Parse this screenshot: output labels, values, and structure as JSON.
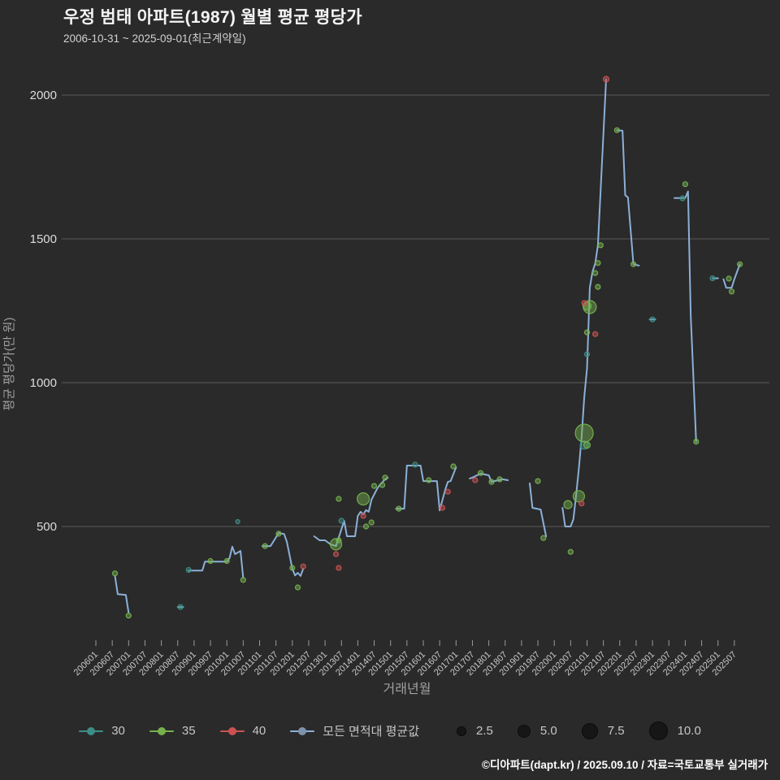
{
  "header": {
    "title": "우정 범태 아파트(1987) 월별 평균 평당가",
    "subtitle": "2006-10-31 ~ 2025-09-01(최근계약일)"
  },
  "colors": {
    "background": "#2a2a2a",
    "grid": "#5a5a5a",
    "tick": "#9a9a9a",
    "tick_label": "#c8c8c8",
    "axis_title": "#a0a0a0",
    "series_30": "#3d8e87",
    "series_35": "#76b14e",
    "series_40": "#cc5252",
    "average_line": "#8cb0d8"
  },
  "chart_data": {
    "type": "line",
    "title": "우정 범태 아파트(1987) 월별 평균 평당가",
    "xlabel": "거래년월",
    "ylabel": "평균 평당가(만 원)",
    "ylim": [
      90,
      2100
    ],
    "y_ticks": [
      500,
      1000,
      1500,
      2000
    ],
    "grid": true,
    "x_ticks": [
      "200601",
      "200607",
      "200701",
      "200707",
      "200801",
      "200807",
      "200901",
      "200907",
      "201001",
      "201007",
      "201101",
      "201107",
      "201201",
      "201207",
      "201301",
      "201307",
      "201401",
      "201407",
      "201501",
      "201507",
      "201601",
      "201607",
      "201701",
      "201707",
      "201801",
      "201807",
      "201901",
      "201907",
      "202001",
      "202007",
      "202101",
      "202107",
      "202201",
      "202207",
      "202301",
      "202307",
      "202401",
      "202407",
      "202501",
      "202507"
    ],
    "line_series": {
      "name": "모든 면적대 평균값",
      "segments": [
        [
          [
            "2006-08",
            328
          ],
          [
            "2006-09",
            265
          ],
          [
            "2006-12",
            262
          ],
          [
            "2007-01",
            200
          ]
        ],
        [
          [
            "2008-07",
            220
          ],
          [
            "2008-09",
            220
          ]
        ],
        [
          [
            "2008-11",
            347
          ],
          [
            "2009-04",
            347
          ],
          [
            "2009-05",
            378
          ],
          [
            "2010-01",
            378
          ],
          [
            "2010-02",
            391
          ],
          [
            "2010-03",
            430
          ],
          [
            "2010-04",
            404
          ],
          [
            "2010-06",
            415
          ],
          [
            "2010-07",
            322
          ]
        ],
        [
          [
            "2011-02",
            432
          ],
          [
            "2011-05",
            432
          ],
          [
            "2011-08",
            477
          ],
          [
            "2011-10",
            474
          ],
          [
            "2011-11",
            446
          ],
          [
            "2012-01",
            353
          ],
          [
            "2012-02",
            330
          ],
          [
            "2012-03",
            339
          ],
          [
            "2012-04",
            328
          ],
          [
            "2012-05",
            353
          ]
        ],
        [
          [
            "2012-09",
            466
          ],
          [
            "2012-11",
            452
          ],
          [
            "2013-01",
            452
          ],
          [
            "2013-03",
            438
          ],
          [
            "2013-05",
            432
          ],
          [
            "2013-08",
            520
          ],
          [
            "2013-09",
            466
          ],
          [
            "2013-12",
            466
          ],
          [
            "2014-01",
            537
          ],
          [
            "2014-02",
            551
          ],
          [
            "2014-03",
            542
          ],
          [
            "2014-04",
            557
          ],
          [
            "2014-05",
            551
          ],
          [
            "2014-06",
            593
          ],
          [
            "2014-08",
            630
          ],
          [
            "2014-09",
            644
          ],
          [
            "2014-11",
            664
          ],
          [
            "2014-12",
            670
          ]
        ],
        [
          [
            "2015-03",
            562
          ],
          [
            "2015-06",
            562
          ],
          [
            "2015-07",
            712
          ],
          [
            "2015-12",
            712
          ],
          [
            "2016-01",
            658
          ],
          [
            "2016-06",
            658
          ],
          [
            "2016-07",
            556
          ],
          [
            "2016-09",
            627
          ],
          [
            "2016-10",
            655
          ],
          [
            "2016-11",
            658
          ],
          [
            "2017-01",
            706
          ]
        ],
        [
          [
            "2017-06",
            667
          ],
          [
            "2017-07",
            670
          ],
          [
            "2017-10",
            684
          ],
          [
            "2018-01",
            678
          ],
          [
            "2018-02",
            655
          ],
          [
            "2018-03",
            658
          ],
          [
            "2018-06",
            664
          ],
          [
            "2018-08",
            661
          ]
        ],
        [
          [
            "2019-04",
            650
          ],
          [
            "2019-05",
            565
          ],
          [
            "2019-08",
            559
          ],
          [
            "2019-10",
            466
          ]
        ],
        [
          [
            "2020-04",
            565
          ],
          [
            "2020-05",
            500
          ],
          [
            "2020-07",
            500
          ],
          [
            "2020-08",
            525
          ],
          [
            "2020-09",
            610
          ],
          [
            "2020-10",
            700
          ],
          [
            "2020-11",
            810
          ],
          [
            "2020-12",
            950
          ],
          [
            "2021-01",
            1050
          ],
          [
            "2021-02",
            1330
          ],
          [
            "2021-03",
            1385
          ],
          [
            "2021-04",
            1415
          ],
          [
            "2021-05",
            1478
          ],
          [
            "2021-08",
            2055
          ]
        ],
        [
          [
            "2021-12",
            1878
          ],
          [
            "2022-02",
            1876
          ],
          [
            "2022-03",
            1652
          ],
          [
            "2022-04",
            1644
          ],
          [
            "2022-06",
            1412
          ],
          [
            "2022-08",
            1407
          ]
        ],
        [
          [
            "2022-12",
            1220
          ],
          [
            "2023-02",
            1220
          ]
        ],
        [
          [
            "2023-09",
            1642
          ],
          [
            "2024-01",
            1642
          ],
          [
            "2024-02",
            1665
          ],
          [
            "2024-03",
            1237
          ],
          [
            "2024-05",
            795
          ]
        ],
        [
          [
            "2024-11",
            1363
          ],
          [
            "2025-01",
            1363
          ]
        ],
        [
          [
            "2025-03",
            1360
          ],
          [
            "2025-04",
            1330
          ],
          [
            "2025-06",
            1330
          ],
          [
            "2025-07",
            1360
          ],
          [
            "2025-09",
            1412
          ]
        ]
      ]
    },
    "scatter_series": [
      {
        "name": "30",
        "points": [
          [
            "2008-08",
            220,
            3
          ],
          [
            "2008-11",
            349,
            3
          ],
          [
            "2010-05",
            517,
            2.5
          ],
          [
            "2013-07",
            520,
            3
          ],
          [
            "2015-10",
            715,
            3
          ],
          [
            "2020-12",
            783,
            5
          ],
          [
            "2021-01",
            1099,
            3
          ],
          [
            "2023-01",
            1220,
            3
          ],
          [
            "2023-12",
            1641,
            3
          ],
          [
            "2024-11",
            1363,
            3
          ]
        ]
      },
      {
        "name": "35",
        "points": [
          [
            "2006-08",
            337,
            3
          ],
          [
            "2007-01",
            190,
            3
          ],
          [
            "2009-07",
            380,
            3
          ],
          [
            "2010-01",
            380,
            3
          ],
          [
            "2010-07",
            314,
            3
          ],
          [
            "2011-03",
            432,
            3
          ],
          [
            "2011-08",
            475,
            3
          ],
          [
            "2012-01",
            356,
            3
          ],
          [
            "2012-03",
            288,
            3
          ],
          [
            "2013-05",
            438,
            7
          ],
          [
            "2013-06",
            452,
            3
          ],
          [
            "2013-06",
            596,
            3
          ],
          [
            "2014-03",
            596,
            7.5
          ],
          [
            "2014-04",
            500,
            3
          ],
          [
            "2014-06",
            514,
            3
          ],
          [
            "2014-07",
            641,
            3
          ],
          [
            "2014-10",
            644,
            3
          ],
          [
            "2014-11",
            670,
            3
          ],
          [
            "2015-04",
            562,
            3
          ],
          [
            "2016-03",
            661,
            3
          ],
          [
            "2016-12",
            709,
            3
          ],
          [
            "2017-10",
            686,
            3
          ],
          [
            "2018-02",
            655,
            3
          ],
          [
            "2018-05",
            664,
            3
          ],
          [
            "2019-07",
            658,
            3
          ],
          [
            "2019-09",
            460,
            3
          ],
          [
            "2020-06",
            576,
            5
          ],
          [
            "2020-07",
            412,
            3
          ],
          [
            "2020-10",
            605,
            7
          ],
          [
            "2020-12",
            825,
            11
          ],
          [
            "2021-01",
            783,
            4
          ],
          [
            "2021-01",
            1175,
            3
          ],
          [
            "2021-01",
            1266,
            5
          ],
          [
            "2021-02",
            1263,
            8
          ],
          [
            "2021-04",
            1381,
            3
          ],
          [
            "2021-05",
            1333,
            3
          ],
          [
            "2021-05",
            1416,
            3
          ],
          [
            "2021-06",
            1478,
            3
          ],
          [
            "2021-12",
            1878,
            3
          ],
          [
            "2022-06",
            1412,
            3
          ],
          [
            "2024-01",
            1690,
            3
          ],
          [
            "2024-05",
            795,
            3
          ],
          [
            "2025-05",
            1362,
            3
          ],
          [
            "2025-06",
            1317,
            3
          ],
          [
            "2025-09",
            1412,
            3
          ]
        ]
      },
      {
        "name": "40",
        "points": [
          [
            "2012-05",
            361,
            3
          ],
          [
            "2013-05",
            404,
            3
          ],
          [
            "2013-06",
            356,
            3
          ],
          [
            "2014-03",
            537,
            3
          ],
          [
            "2016-08",
            565,
            3
          ],
          [
            "2016-10",
            621,
            3
          ],
          [
            "2017-08",
            661,
            3
          ],
          [
            "2020-11",
            580,
            3
          ],
          [
            "2020-12",
            1277,
            3
          ],
          [
            "2021-04",
            1169,
            3
          ],
          [
            "2021-08",
            2055,
            3.5
          ]
        ]
      }
    ],
    "legend_position": "bottom"
  },
  "legend": {
    "series": [
      {
        "label": "30",
        "color": "#3d8e87",
        "dot": "#3d8e87"
      },
      {
        "label": "35",
        "color": "#76b14e",
        "dot": "#76b14e"
      },
      {
        "label": "40",
        "color": "#cc5252",
        "dot": "#cc5252"
      },
      {
        "label": "모든 면적대 평균값",
        "color": "#8cb0d8",
        "dot": "#7d93ad"
      }
    ],
    "sizes": [
      {
        "label": "2.5",
        "r": 5
      },
      {
        "label": "5.0",
        "r": 7
      },
      {
        "label": "7.5",
        "r": 9
      },
      {
        "label": "10.0",
        "r": 10.5
      }
    ]
  },
  "footer": {
    "credit": "©디아파트(dapt.kr) / 2025.09.10 / 자료=국토교통부 실거래가"
  }
}
